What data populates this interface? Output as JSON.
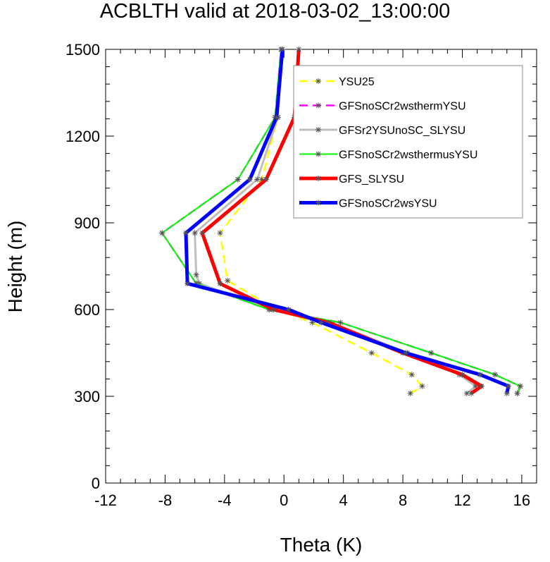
{
  "chart_data": {
    "type": "line",
    "title": "ACBLTH valid at 2018-03-02_13:00:00",
    "xlabel": "Theta (K)",
    "ylabel": "Height (m)",
    "xlim": [
      -12,
      17
    ],
    "ylim": [
      0,
      1500
    ],
    "xticks": [
      -12,
      -8,
      -4,
      0,
      4,
      8,
      12,
      16
    ],
    "yticks": [
      0,
      300,
      600,
      900,
      1200,
      1500
    ],
    "grid": false,
    "legend_position": "top-right",
    "series": [
      {
        "name": "YSU25",
        "color": "#ffff00",
        "dash": "dashed",
        "width": 2.5,
        "points": [
          [
            8.5,
            310
          ],
          [
            9.3,
            335
          ],
          [
            8.6,
            375
          ],
          [
            5.9,
            450
          ],
          [
            1.9,
            555
          ],
          [
            -0.5,
            600
          ],
          [
            -3.8,
            700
          ],
          [
            -4.3,
            865
          ],
          [
            -1.5,
            1050
          ],
          [
            -0.4,
            1265
          ],
          [
            -0.1,
            1500
          ]
        ]
      },
      {
        "name": "GFSnoSCr2wsthermYSU",
        "color": "#ff00ff",
        "dash": "dashed",
        "width": 2.5,
        "points": [
          [
            15.7,
            310
          ],
          [
            15.9,
            335
          ],
          [
            14.2,
            375
          ],
          [
            9.9,
            450
          ],
          [
            3.8,
            555
          ],
          [
            -1.0,
            600
          ],
          [
            -5.9,
            690
          ],
          [
            -8.2,
            865
          ],
          [
            -3.1,
            1050
          ],
          [
            -0.6,
            1265
          ],
          [
            -0.2,
            1500
          ]
        ]
      },
      {
        "name": "GFSr2YSUnoSC_SLYSU",
        "color": "#bebebe",
        "dash": "solid",
        "width": 3,
        "points": [
          [
            12.3,
            310
          ],
          [
            12.9,
            335
          ],
          [
            11.8,
            375
          ],
          [
            8.3,
            450
          ],
          [
            3.2,
            555
          ],
          [
            -0.8,
            600
          ],
          [
            -5.7,
            690
          ],
          [
            -5.9,
            720
          ],
          [
            -6.0,
            865
          ],
          [
            -1.8,
            1050
          ],
          [
            -0.4,
            1265
          ],
          [
            -0.2,
            1500
          ]
        ]
      },
      {
        "name": "GFSnoSCr2wsthermusYSU",
        "color": "#00ff00",
        "dash": "solid",
        "width": 2,
        "points": [
          [
            15.7,
            310
          ],
          [
            15.9,
            335
          ],
          [
            14.2,
            375
          ],
          [
            9.9,
            450
          ],
          [
            3.8,
            555
          ],
          [
            -1.0,
            600
          ],
          [
            -5.9,
            690
          ],
          [
            -8.2,
            865
          ],
          [
            -3.1,
            1050
          ],
          [
            -0.6,
            1265
          ],
          [
            -0.2,
            1500
          ]
        ]
      },
      {
        "name": "GFS_SLYSU",
        "color": "#ff0000",
        "dash": "solid",
        "width": 5,
        "points": [
          [
            12.6,
            310
          ],
          [
            13.3,
            335
          ],
          [
            12.0,
            375
          ],
          [
            8.0,
            450
          ],
          [
            3.0,
            555
          ],
          [
            -0.7,
            600
          ],
          [
            -4.3,
            690
          ],
          [
            -5.5,
            865
          ],
          [
            -1.2,
            1050
          ],
          [
            0.7,
            1265
          ],
          [
            1.0,
            1500
          ]
        ]
      },
      {
        "name": "GFSnoSCr2wsYSU",
        "color": "#0000ff",
        "dash": "solid",
        "width": 5,
        "points": [
          [
            15.0,
            310
          ],
          [
            15.1,
            335
          ],
          [
            13.2,
            375
          ],
          [
            8.2,
            450
          ],
          [
            2.5,
            555
          ],
          [
            0.3,
            600
          ],
          [
            -6.5,
            690
          ],
          [
            -6.6,
            865
          ],
          [
            -2.3,
            1050
          ],
          [
            -0.5,
            1265
          ],
          [
            -0.1,
            1500
          ]
        ]
      }
    ]
  }
}
